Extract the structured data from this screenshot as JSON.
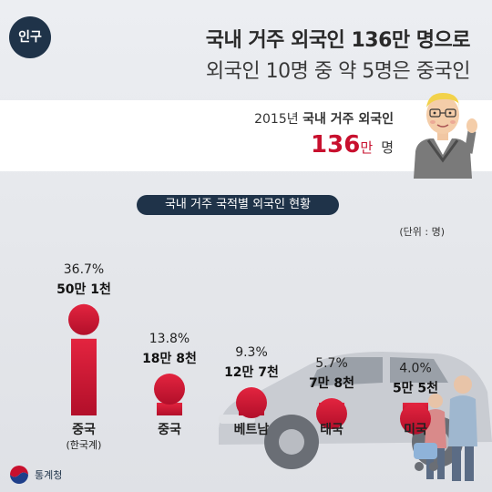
{
  "header": {
    "badge": "인구",
    "headline_line1": "국내 거주 외국인 136만 명으로",
    "headline_line2": "외국인 10명 중 약 5명은 중국인"
  },
  "stat": {
    "year_label": "2015년",
    "label_rest": "국내 거주 외국인",
    "value": "136",
    "value_unit": "만",
    "value_unit2": "명"
  },
  "chart_title": "국내 거주 국적별 외국인 현황",
  "unit_note": "(단위 : 명)",
  "footer": {
    "org_name": "통계청"
  },
  "colors": {
    "accent": "#c8102e",
    "navy": "#1f3349"
  },
  "chart_data": {
    "type": "bar",
    "title": "국내 거주 국적별 외국인 현황",
    "unit": "(단위 : 명)",
    "categories": [
      "중국",
      "중국",
      "베트남",
      "태국",
      "미국"
    ],
    "category_notes": [
      "(한국계)",
      "",
      "",
      "",
      ""
    ],
    "values": [
      36.7,
      13.8,
      9.3,
      5.7,
      4.0
    ],
    "percent_labels": [
      "36.7%",
      "13.8%",
      "9.3%",
      "5.7%",
      "4.0%"
    ],
    "count_labels": [
      "50만 1천",
      "18만 8천",
      "12만 7천",
      "7만 8천",
      "5만 5천"
    ]
  }
}
